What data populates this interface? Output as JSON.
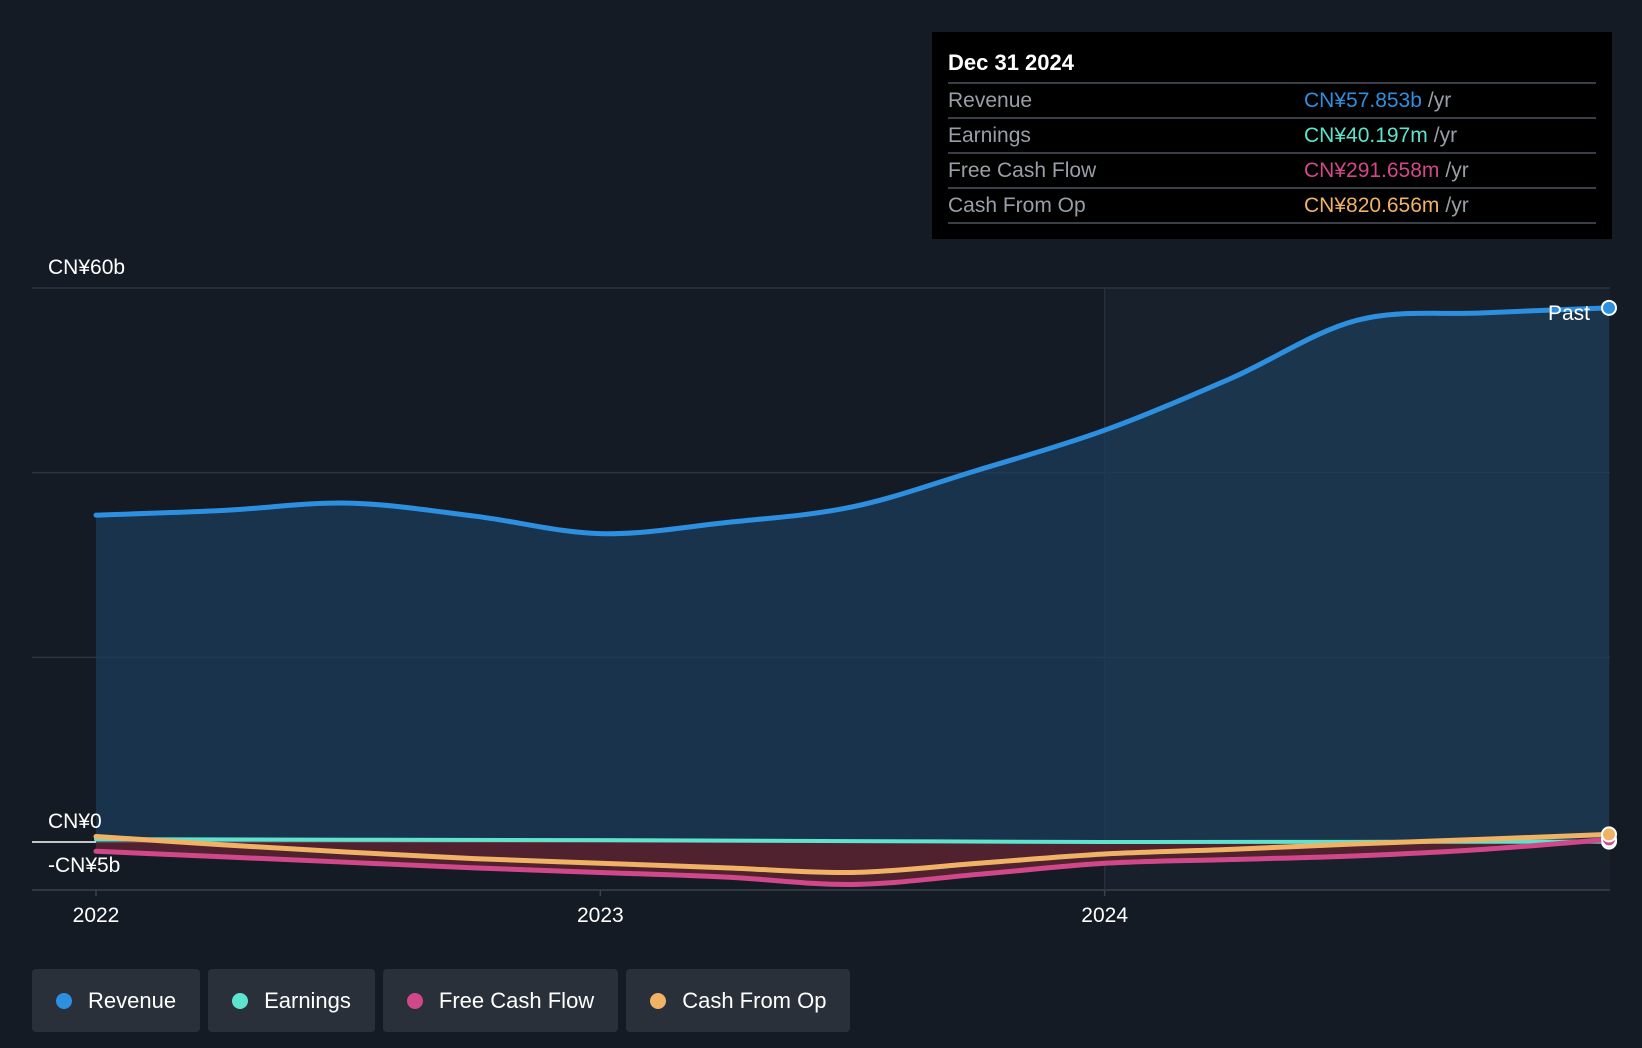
{
  "tooltip": {
    "date": "Dec 31 2024",
    "rows": [
      {
        "label": "Revenue",
        "value": "CN¥57.853b",
        "unit": "/yr",
        "color": "#2d8fe0"
      },
      {
        "label": "Earnings",
        "value": "CN¥40.197m",
        "unit": "/yr",
        "color": "#5ee3cf"
      },
      {
        "label": "Free Cash Flow",
        "value": "CN¥291.658m",
        "unit": "/yr",
        "color": "#d1488a"
      },
      {
        "label": "Cash From Op",
        "value": "CN¥820.656m",
        "unit": "/yr",
        "color": "#f0b264"
      }
    ]
  },
  "past_label": "Past",
  "legend": [
    {
      "label": "Revenue",
      "color": "#2d8fe0"
    },
    {
      "label": "Earnings",
      "color": "#5ee3cf"
    },
    {
      "label": "Free Cash Flow",
      "color": "#d1488a"
    },
    {
      "label": "Cash From Op",
      "color": "#f0b264"
    }
  ],
  "chart_data": {
    "type": "area",
    "title": "",
    "xlabel": "",
    "ylabel": "",
    "y_tick_labels": [
      {
        "value": 60,
        "label": "CN¥60b"
      },
      {
        "value": 0,
        "label": "CN¥0"
      },
      {
        "value": -5,
        "label": "-CN¥5b"
      }
    ],
    "ylim": [
      -5,
      60
    ],
    "xlim": [
      2022.0,
      2025.0
    ],
    "x_ticks": [
      {
        "value": 2022,
        "label": "2022"
      },
      {
        "value": 2023,
        "label": "2023"
      },
      {
        "value": 2024,
        "label": "2024"
      }
    ],
    "grid": true,
    "legend_position": "bottom",
    "series": [
      {
        "name": "Revenue",
        "color": "#2d8fe0",
        "x": [
          2022.0,
          2022.25,
          2022.5,
          2022.75,
          2023.0,
          2023.25,
          2023.5,
          2023.75,
          2024.0,
          2024.25,
          2024.5,
          2024.75,
          2025.0
        ],
        "y": [
          35.4,
          35.9,
          36.7,
          35.3,
          33.4,
          34.6,
          36.3,
          40.3,
          44.6,
          50.2,
          56.5,
          57.3,
          57.853
        ]
      },
      {
        "name": "Earnings",
        "color": "#5ee3cf",
        "x": [
          2022.0,
          2022.5,
          2023.0,
          2023.5,
          2024.0,
          2024.5,
          2025.0
        ],
        "y": [
          0.3,
          0.25,
          0.2,
          0.1,
          0.0,
          0.02,
          0.04
        ]
      },
      {
        "name": "Free Cash Flow",
        "color": "#d1488a",
        "x": [
          2022.0,
          2022.25,
          2022.5,
          2022.75,
          2023.0,
          2023.25,
          2023.5,
          2023.75,
          2024.0,
          2024.25,
          2024.5,
          2024.75,
          2025.0
        ],
        "y": [
          -1.0,
          -1.6,
          -2.2,
          -2.8,
          -3.3,
          -3.8,
          -4.6,
          -3.5,
          -2.3,
          -1.9,
          -1.5,
          -0.8,
          0.29
        ]
      },
      {
        "name": "Cash From Op",
        "color": "#f0b264",
        "x": [
          2022.0,
          2022.25,
          2022.5,
          2022.75,
          2023.0,
          2023.25,
          2023.5,
          2023.75,
          2024.0,
          2024.25,
          2024.5,
          2024.75,
          2025.0
        ],
        "y": [
          0.6,
          -0.3,
          -1.1,
          -1.8,
          -2.3,
          -2.8,
          -3.3,
          -2.3,
          -1.3,
          -0.8,
          -0.2,
          0.3,
          0.82
        ]
      }
    ]
  }
}
